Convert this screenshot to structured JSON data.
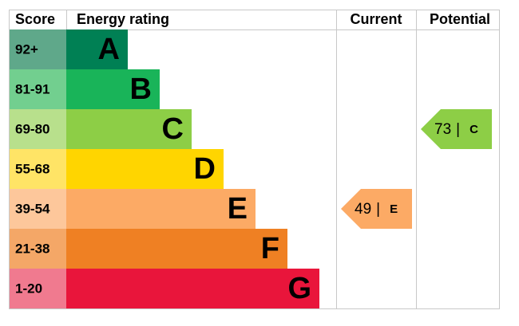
{
  "header": {
    "score": "Score",
    "rating": "Energy rating",
    "current": "Current",
    "potential": "Potential"
  },
  "bands": [
    {
      "score": "92+",
      "letter": "A",
      "color": "#008054",
      "score_color": "#5fa88a"
    },
    {
      "score": "81-91",
      "letter": "B",
      "color": "#19b459",
      "score_color": "#72cf8f"
    },
    {
      "score": "69-80",
      "letter": "C",
      "color": "#8dce46",
      "score_color": "#b8e08c"
    },
    {
      "score": "55-68",
      "letter": "D",
      "color": "#ffd500",
      "score_color": "#ffe466"
    },
    {
      "score": "39-54",
      "letter": "E",
      "color": "#fcaa65",
      "score_color": "#fdc79b"
    },
    {
      "score": "21-38",
      "letter": "F",
      "color": "#ef8023",
      "score_color": "#f4a767"
    },
    {
      "score": "1-20",
      "letter": "G",
      "color": "#e9153b",
      "score_color": "#f07a8f"
    }
  ],
  "current": {
    "value": 49,
    "separator": "|",
    "rating": "E",
    "color": "#fcaa65"
  },
  "potential": {
    "value": 73,
    "separator": "|",
    "rating": "C",
    "color": "#8dce46"
  }
}
